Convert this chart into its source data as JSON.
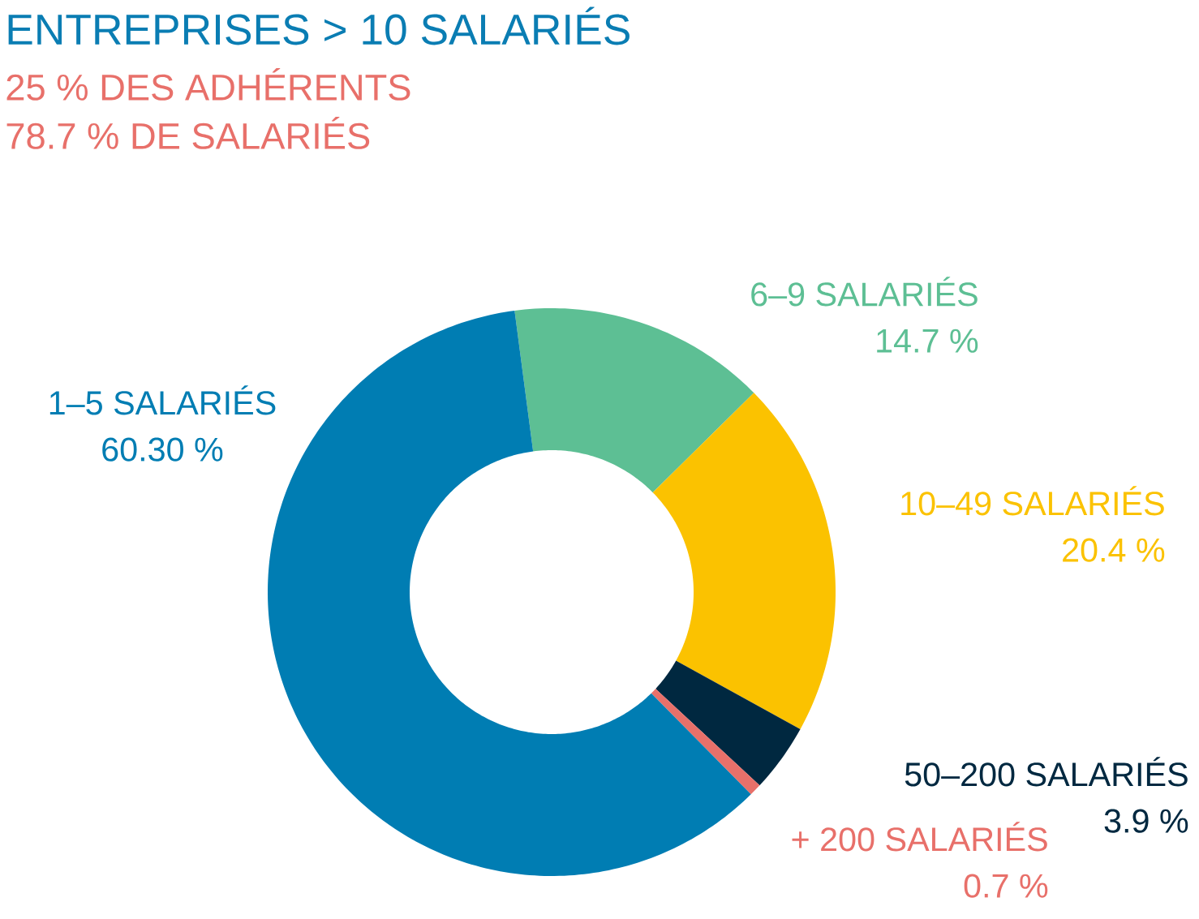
{
  "chart_data": {
    "type": "donut",
    "title": "ENTREPRISES  > 10 SALARIÉS",
    "subtitle": "25 % DES ADHÉRENTS",
    "annotations": [
      "78.7 % DE SALARIÉS"
    ],
    "categories": [
      "6–9 SALARIÉS",
      "10–49 SALARIÉS",
      "50–200 SALARIÉS",
      "+ 200 SALARIÉS",
      "1–5 SALARIÉS"
    ],
    "values": [
      14.7,
      20.4,
      3.9,
      0.7,
      60.3
    ],
    "value_labels": [
      "14.7 %",
      "20.4 %",
      "3.9 %",
      "0.7 %",
      "60.30 %"
    ],
    "colors": [
      "#5dbf94",
      "#fbc200",
      "#002840",
      "#e8706a",
      "#007db3"
    ]
  }
}
